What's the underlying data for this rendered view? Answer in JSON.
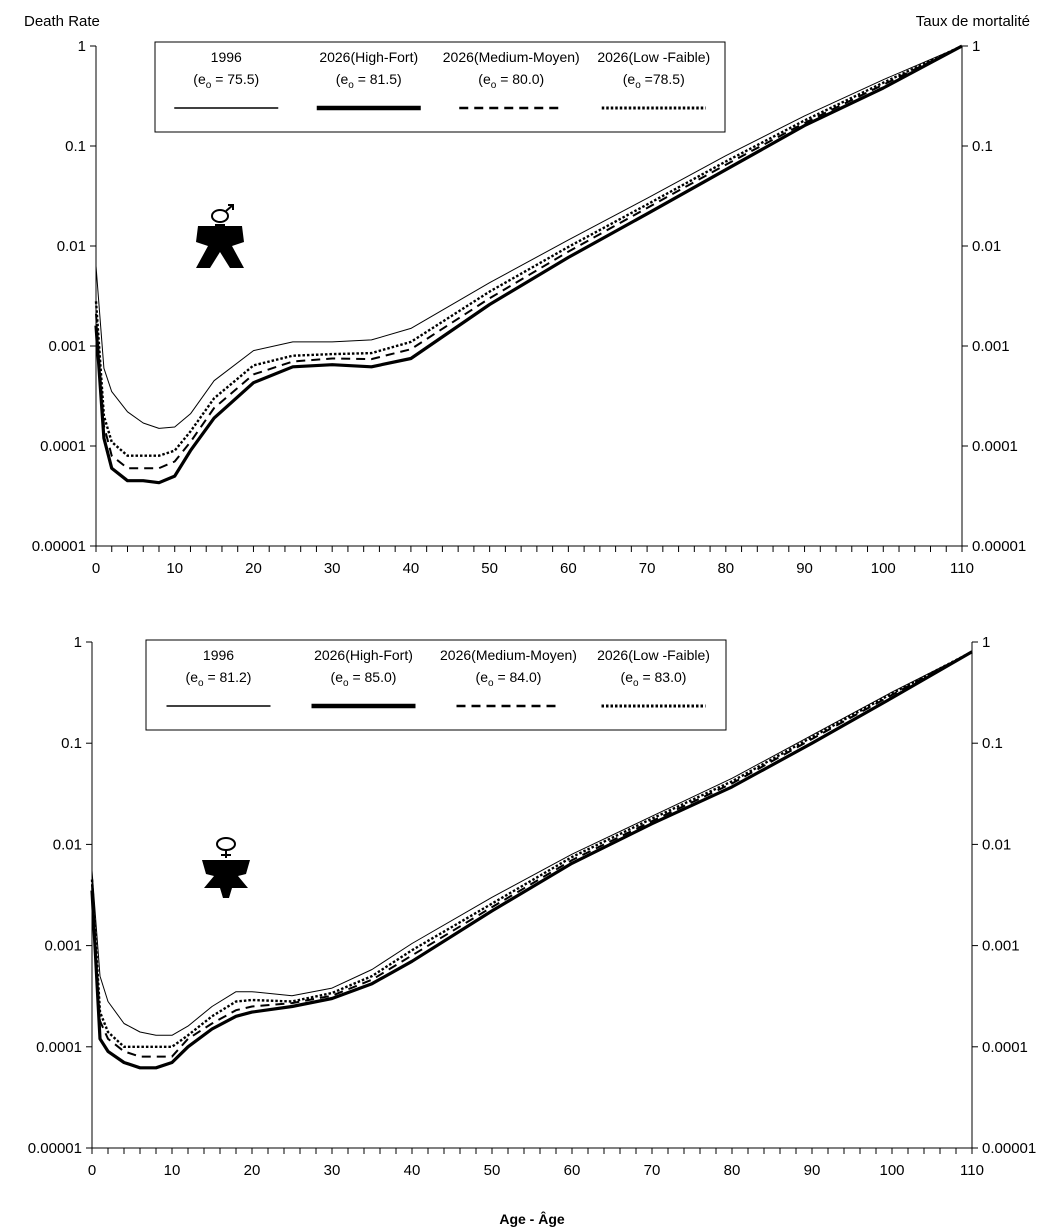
{
  "chart_data": [
    {
      "type": "line",
      "ylabel_left": "Death Rate",
      "ylabel_right": "Taux de mortalité",
      "y_scale": "log",
      "ylim": [
        1e-05,
        1
      ],
      "xlim": [
        0,
        110
      ],
      "y_tick_labels": [
        "1",
        "0.1",
        "0.01",
        "0.001",
        "0.0001",
        "0.00001"
      ],
      "x_tick_labels": [
        "0",
        "10",
        "20",
        "30",
        "40",
        "50",
        "60",
        "70",
        "80",
        "90",
        "100",
        "110"
      ],
      "legend_placement": "top-left",
      "icon": "male-symbol-icon",
      "legend": [
        {
          "name": "1996",
          "e0_prefix": "(e",
          "e0_sub": "o",
          "e0_value": " = 75.5)"
        },
        {
          "name": "2026(High-Fort)",
          "e0_prefix": "(e",
          "e0_sub": "o",
          "e0_value": " = 81.5)"
        },
        {
          "name": "2026(Medium-Moyen)",
          "e0_prefix": "(e",
          "e0_sub": "o",
          "e0_value": " = 80.0)"
        },
        {
          "name": "2026(Low -Faible)",
          "e0_prefix": "(e",
          "e0_sub": "o",
          "e0_value": " =78.5)"
        }
      ],
      "x": [
        0,
        1,
        2,
        4,
        6,
        8,
        10,
        12,
        15,
        20,
        25,
        30,
        35,
        40,
        50,
        60,
        70,
        80,
        90,
        100,
        110
      ],
      "series": [
        {
          "name": "1996",
          "values": [
            0.0063,
            0.0006,
            0.00035,
            0.00022,
            0.00017,
            0.00015,
            0.000155,
            0.00021,
            0.00045,
            0.0009,
            0.0011,
            0.0011,
            0.00115,
            0.0015,
            0.0043,
            0.0115,
            0.03,
            0.08,
            0.2,
            0.46,
            1.0
          ]
        },
        {
          "name": "2026(High-Fort)",
          "values": [
            0.0016,
            0.00012,
            6e-05,
            4.5e-05,
            4.5e-05,
            4.3e-05,
            5e-05,
            9e-05,
            0.00019,
            0.00043,
            0.00062,
            0.00065,
            0.00062,
            0.00075,
            0.0026,
            0.0077,
            0.021,
            0.058,
            0.16,
            0.38,
            1.0
          ]
        },
        {
          "name": "2026(Medium-Moyen)",
          "values": [
            0.0021,
            0.00016,
            8e-05,
            6e-05,
            6e-05,
            6e-05,
            7e-05,
            0.00011,
            0.00024,
            0.00052,
            0.0007,
            0.00075,
            0.00074,
            0.00093,
            0.003,
            0.0088,
            0.024,
            0.065,
            0.17,
            0.41,
            1.0
          ]
        },
        {
          "name": "2026(Low -Faible)",
          "values": [
            0.0028,
            0.0002,
            0.00011,
            8e-05,
            8e-05,
            8e-05,
            9e-05,
            0.00014,
            0.0003,
            0.00064,
            0.0008,
            0.00083,
            0.00085,
            0.0011,
            0.0035,
            0.0098,
            0.026,
            0.07,
            0.18,
            0.43,
            1.0
          ]
        }
      ]
    },
    {
      "type": "line",
      "y_scale": "log",
      "ylim": [
        1e-05,
        1
      ],
      "xlim": [
        0,
        110
      ],
      "y_tick_labels": [
        "1",
        "0.1",
        "0.01",
        "0.001",
        "0.0001",
        "0.00001"
      ],
      "x_tick_labels": [
        "0",
        "10",
        "20",
        "30",
        "40",
        "50",
        "60",
        "70",
        "80",
        "90",
        "100",
        "110"
      ],
      "xlabel": "Age - Âge",
      "legend_placement": "top-left",
      "icon": "female-symbol-icon",
      "legend": [
        {
          "name": "1996",
          "e0_prefix": "(e",
          "e0_sub": "o",
          "e0_value": " = 81.2)"
        },
        {
          "name": "2026(High-Fort)",
          "e0_prefix": "(e",
          "e0_sub": "o",
          "e0_value": " = 85.0)"
        },
        {
          "name": "2026(Medium-Moyen)",
          "e0_prefix": "(e",
          "e0_sub": "o",
          "e0_value": " = 84.0)"
        },
        {
          "name": "2026(Low -Faible)",
          "e0_prefix": "(e",
          "e0_sub": "o",
          "e0_value": " = 83.0)"
        }
      ],
      "x": [
        0,
        1,
        2,
        4,
        6,
        8,
        10,
        12,
        15,
        18,
        20,
        25,
        30,
        35,
        40,
        50,
        60,
        70,
        80,
        90,
        100,
        110
      ],
      "series": [
        {
          "name": "1996",
          "values": [
            0.0055,
            0.0005,
            0.00028,
            0.00017,
            0.00014,
            0.00013,
            0.00013,
            0.00016,
            0.00025,
            0.00035,
            0.00035,
            0.00032,
            0.00038,
            0.00058,
            0.00105,
            0.003,
            0.008,
            0.019,
            0.045,
            0.12,
            0.32,
            0.8
          ]
        },
        {
          "name": "2026(High-Fort)",
          "values": [
            0.0035,
            0.00012,
            9e-05,
            7e-05,
            6.2e-05,
            6.2e-05,
            7e-05,
            0.0001,
            0.00015,
            0.0002,
            0.00022,
            0.00025,
            0.0003,
            0.00042,
            0.0007,
            0.0022,
            0.0065,
            0.016,
            0.037,
            0.1,
            0.28,
            0.8
          ]
        },
        {
          "name": "2026(Medium-Moyen)",
          "values": [
            0.004,
            0.00018,
            0.00012,
            9e-05,
            8e-05,
            8e-05,
            8e-05,
            0.00012,
            0.00017,
            0.00023,
            0.00025,
            0.00027,
            0.00032,
            0.00046,
            0.0008,
            0.0024,
            0.007,
            0.017,
            0.04,
            0.11,
            0.3,
            0.8
          ]
        },
        {
          "name": "2026(Low -Faible)",
          "values": [
            0.0045,
            0.00022,
            0.00014,
            0.0001,
            0.0001,
            0.0001,
            0.0001,
            0.00013,
            0.0002,
            0.00028,
            0.00029,
            0.00028,
            0.00034,
            0.0005,
            0.0009,
            0.0026,
            0.0075,
            0.018,
            0.042,
            0.115,
            0.31,
            0.8
          ]
        }
      ]
    }
  ]
}
